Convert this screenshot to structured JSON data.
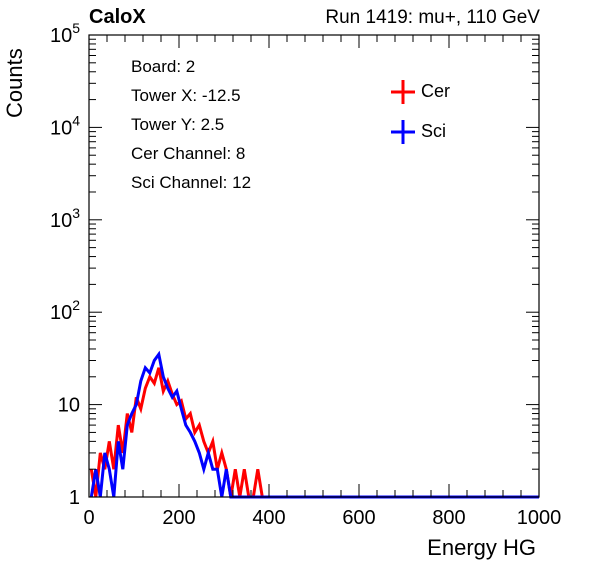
{
  "header": {
    "left": "CaloX",
    "right": "Run 1419: mu+, 110 GeV"
  },
  "info_box": {
    "board": "Board: 2",
    "tower_x": "Tower X: -12.5",
    "tower_y": "Tower Y: 2.5",
    "cer_channel": "Cer Channel: 8",
    "sci_channel": "Sci Channel: 12"
  },
  "chart_data": {
    "type": "line",
    "title": "",
    "xlabel": "Energy HG",
    "ylabel": "Counts",
    "xlim": [
      0,
      1000
    ],
    "ylim": [
      1,
      100000
    ],
    "log_y": true,
    "grid": false,
    "legend_position": "top-right",
    "x_ticks": [
      0,
      200,
      400,
      600,
      800,
      1000
    ],
    "x_tick_labels": [
      "0",
      "200",
      "400",
      "600",
      "800",
      "1000"
    ],
    "y_ticks": [
      1,
      10,
      100,
      1000,
      10000,
      100000
    ],
    "y_tick_labels": [
      "1",
      "10",
      "10^2",
      "10^3",
      "10^4",
      "10^5"
    ],
    "series": [
      {
        "name": "Cer",
        "color": "#ff0000",
        "x": [
          5,
          15,
          25,
          35,
          45,
          55,
          65,
          75,
          85,
          95,
          105,
          115,
          125,
          135,
          145,
          155,
          165,
          175,
          185,
          195,
          205,
          215,
          225,
          235,
          245,
          255,
          265,
          275,
          285,
          295,
          305,
          315,
          325,
          335,
          345,
          355,
          365,
          375,
          385,
          395,
          405,
          420,
          440,
          460,
          480,
          500,
          520,
          540,
          560,
          580,
          600,
          620,
          640,
          660,
          680,
          700,
          720,
          740,
          760,
          780,
          800,
          820,
          840,
          860,
          880,
          900,
          920,
          940,
          960,
          980,
          1000
        ],
        "y": [
          2,
          1,
          3,
          2,
          4,
          2,
          6,
          3,
          8,
          5,
          12,
          9,
          15,
          20,
          17,
          25,
          14,
          18,
          13,
          10,
          11,
          7,
          8,
          5,
          6,
          4,
          3,
          4,
          2,
          3,
          2,
          1,
          2,
          1,
          2,
          1,
          1,
          2,
          1,
          1,
          1,
          1,
          1,
          1,
          1,
          1,
          1,
          1,
          1,
          1,
          1,
          1,
          1,
          1,
          1,
          1,
          1,
          1,
          1,
          1,
          1,
          1,
          1,
          1,
          1,
          1,
          1,
          1,
          1,
          1,
          1
        ]
      },
      {
        "name": "Sci",
        "color": "#0000ff",
        "x": [
          5,
          15,
          25,
          35,
          45,
          55,
          65,
          75,
          85,
          95,
          105,
          115,
          125,
          135,
          145,
          155,
          165,
          175,
          185,
          195,
          205,
          215,
          225,
          235,
          245,
          255,
          265,
          275,
          285,
          295,
          305,
          315,
          325,
          335,
          345,
          355,
          365,
          375,
          385,
          395,
          405,
          420,
          440,
          460,
          480,
          500,
          520,
          540,
          560,
          580,
          600,
          620,
          640,
          660,
          680,
          700,
          720,
          740,
          760,
          780,
          800,
          820,
          840,
          860,
          880,
          900,
          920,
          940,
          960,
          980,
          1000
        ],
        "y": [
          1,
          2,
          1,
          3,
          2,
          1,
          4,
          2,
          6,
          8,
          10,
          18,
          25,
          22,
          30,
          35,
          20,
          15,
          12,
          14,
          9,
          6,
          5,
          4,
          3,
          2,
          3,
          2,
          2,
          1,
          2,
          1,
          1,
          1,
          1,
          1,
          1,
          1,
          1,
          1,
          1,
          1,
          1,
          1,
          1,
          1,
          1,
          1,
          1,
          1,
          1,
          1,
          1,
          1,
          1,
          1,
          1,
          1,
          1,
          1,
          1,
          1,
          1,
          1,
          1,
          1,
          1,
          1,
          1,
          1,
          1
        ]
      }
    ]
  }
}
